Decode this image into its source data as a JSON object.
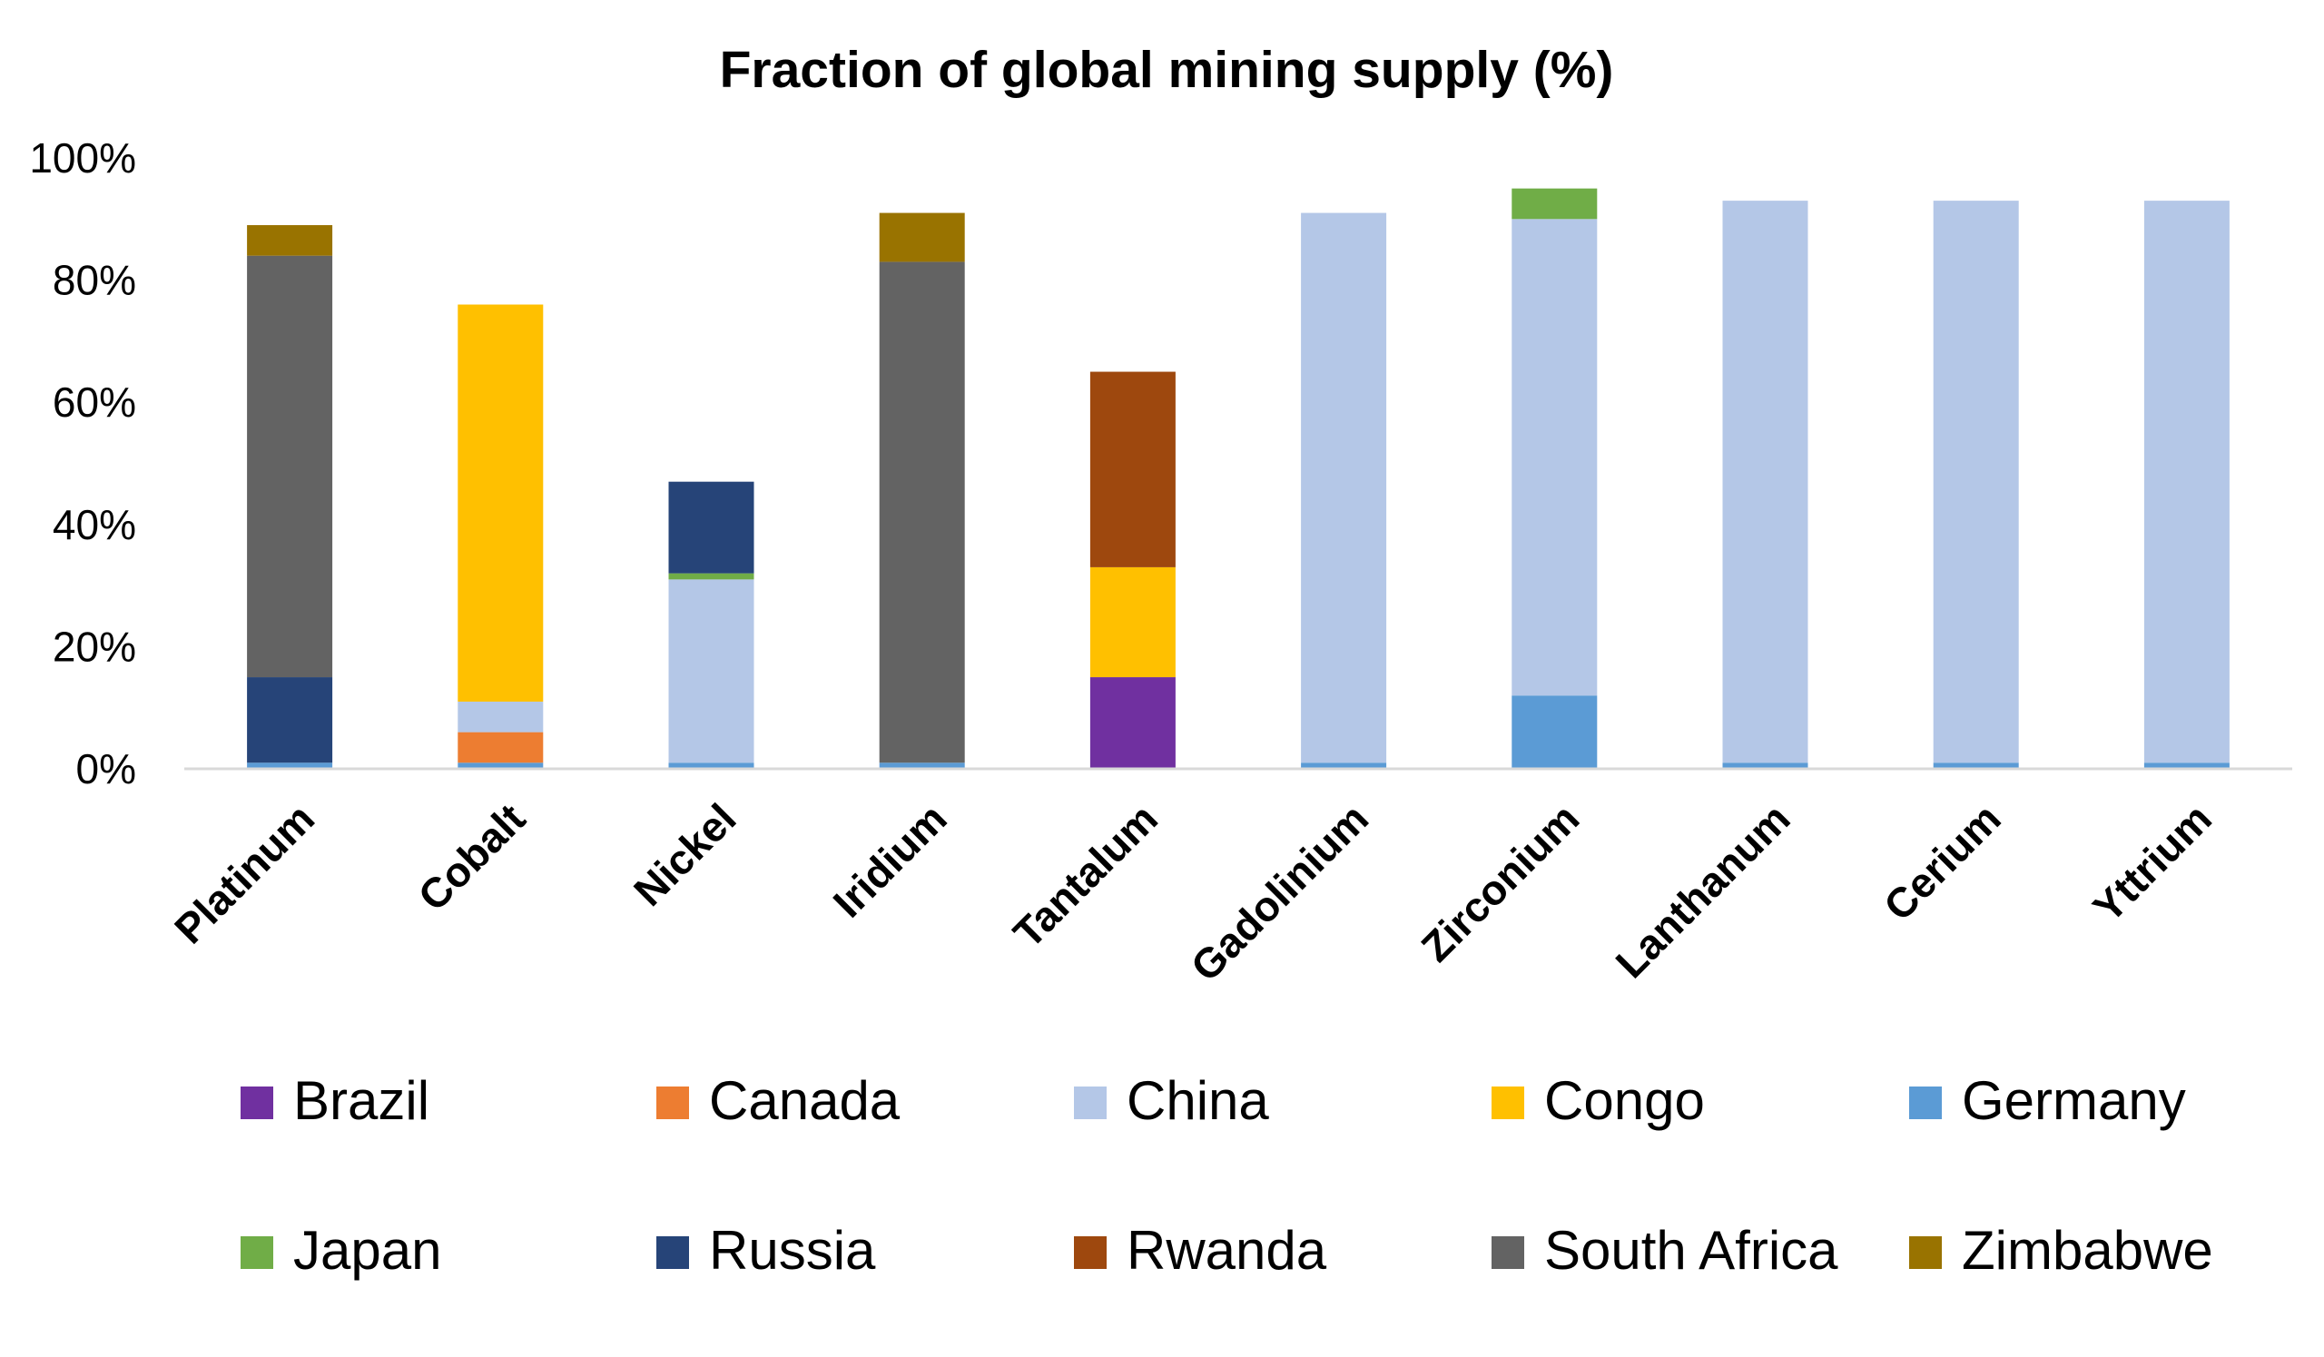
{
  "chart_data": {
    "type": "bar",
    "stacked": true,
    "title": "Fraction of global mining supply (%)",
    "xlabel": "",
    "ylabel": "",
    "ylim": [
      0,
      100
    ],
    "yticks": [
      "0%",
      "20%",
      "40%",
      "60%",
      "80%",
      "100%"
    ],
    "grid": false,
    "legend_position": "bottom",
    "categories": [
      "Platinum",
      "Cobalt",
      "Nickel",
      "Iridium",
      "Tantalum",
      "Gadolinium",
      "Zirconium",
      "Lanthanum",
      "Cerium",
      "Yttrium"
    ],
    "series": [
      {
        "name": "Brazil",
        "color": "#7030A0",
        "values": [
          0,
          0,
          0,
          0,
          15,
          0,
          0,
          0,
          0,
          0
        ]
      },
      {
        "name": "Canada",
        "color": "#ED7D31",
        "values": [
          0,
          5,
          0,
          0,
          0,
          0,
          0,
          0,
          0,
          0
        ]
      },
      {
        "name": "China",
        "color": "#B4C7E7",
        "values": [
          0,
          5,
          30,
          0,
          0,
          90,
          78,
          92,
          92,
          92
        ]
      },
      {
        "name": "Congo",
        "color": "#FFC000",
        "values": [
          0,
          65,
          0,
          0,
          18,
          0,
          0,
          0,
          0,
          0
        ]
      },
      {
        "name": "Germany",
        "color": "#5B9BD5",
        "values": [
          1,
          1,
          1,
          1,
          0,
          1,
          12,
          1,
          1,
          1
        ]
      },
      {
        "name": "Japan",
        "color": "#70AD47",
        "values": [
          0,
          0,
          1,
          0,
          0,
          0,
          5,
          0,
          0,
          0
        ]
      },
      {
        "name": "Russia",
        "color": "#264478",
        "values": [
          14,
          0,
          15,
          0,
          0,
          0,
          0,
          0,
          0,
          0
        ]
      },
      {
        "name": "Rwanda",
        "color": "#9E480E",
        "values": [
          0,
          0,
          0,
          0,
          32,
          0,
          0,
          0,
          0,
          0
        ]
      },
      {
        "name": "South Africa",
        "color": "#636363",
        "values": [
          69,
          0,
          0,
          82,
          0,
          0,
          0,
          0,
          0,
          0
        ]
      },
      {
        "name": "Zimbabwe",
        "color": "#997300",
        "values": [
          5,
          0,
          0,
          8,
          0,
          0,
          0,
          0,
          0,
          0
        ]
      }
    ],
    "stack_order": [
      "Germany",
      "Brazil",
      "Canada",
      "China",
      "Congo",
      "Japan",
      "Russia",
      "Rwanda",
      "South Africa",
      "Zimbabwe"
    ]
  }
}
